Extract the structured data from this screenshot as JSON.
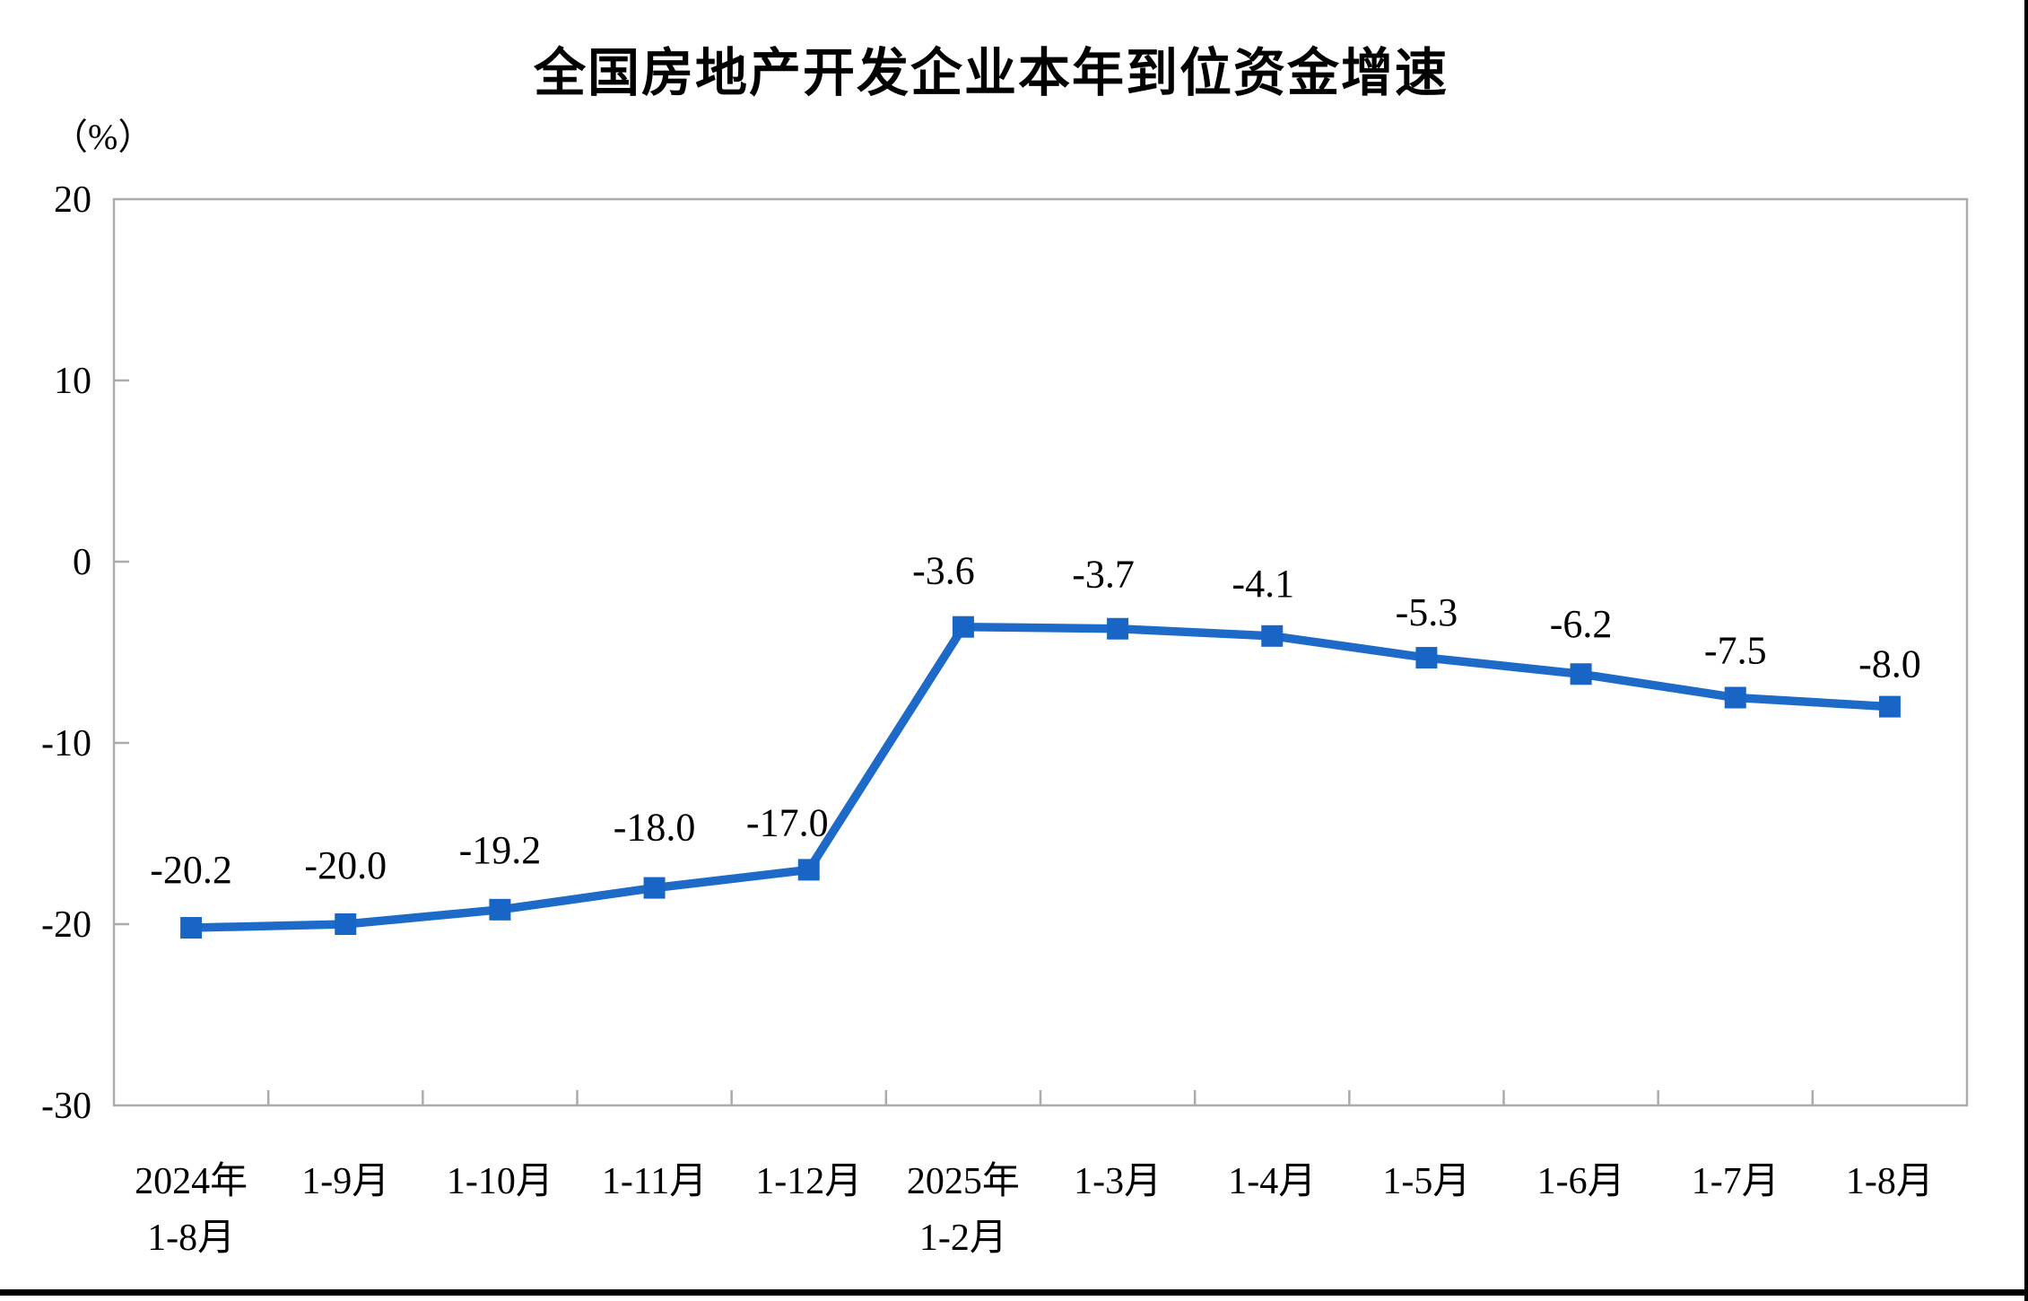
{
  "header": {
    "title": "全国房地产开发企业本年到位资金增速",
    "unit_label": "（%）"
  },
  "chart_data": {
    "type": "line",
    "title": "全国房地产开发企业本年到位资金增速",
    "ylabel": "（%）",
    "ylim": [
      -30,
      20
    ],
    "yticks": [
      20,
      10,
      0,
      -10,
      -20,
      -30
    ],
    "grid": false,
    "legend": "none",
    "categories": [
      {
        "line1": "2024年",
        "line2": "1-8月"
      },
      {
        "line1": "1-9月",
        "line2": ""
      },
      {
        "line1": "1-10月",
        "line2": ""
      },
      {
        "line1": "1-11月",
        "line2": ""
      },
      {
        "line1": "1-12月",
        "line2": ""
      },
      {
        "line1": "2025年",
        "line2": "1-2月"
      },
      {
        "line1": "1-3月",
        "line2": ""
      },
      {
        "line1": "1-4月",
        "line2": ""
      },
      {
        "line1": "1-5月",
        "line2": ""
      },
      {
        "line1": "1-6月",
        "line2": ""
      },
      {
        "line1": "1-7月",
        "line2": ""
      },
      {
        "line1": "1-8月",
        "line2": ""
      }
    ],
    "values": [
      -20.2,
      -20.0,
      -19.2,
      -18.0,
      -17.0,
      -3.6,
      -3.7,
      -4.1,
      -5.3,
      -6.2,
      -7.5,
      -8.0
    ],
    "point_labels": [
      "-20.2",
      "-20.0",
      "-19.2",
      "-18.0",
      "-17.0",
      "-3.6",
      "-3.7",
      "-4.1",
      "-5.3",
      "-6.2",
      "-7.5",
      "-8.0"
    ],
    "label_dx": [
      0,
      0,
      0,
      0,
      -24,
      -22,
      -16,
      -10,
      0,
      0,
      0,
      0
    ],
    "label_dy": [
      -50,
      -51,
      -52,
      -53,
      -38,
      -48,
      -46,
      -44,
      -36,
      -41,
      -38,
      -33
    ],
    "colors": {
      "line": "#1E6AC8",
      "marker": "#1865C6",
      "axis": "#ABABAB",
      "text": "#000000"
    }
  }
}
